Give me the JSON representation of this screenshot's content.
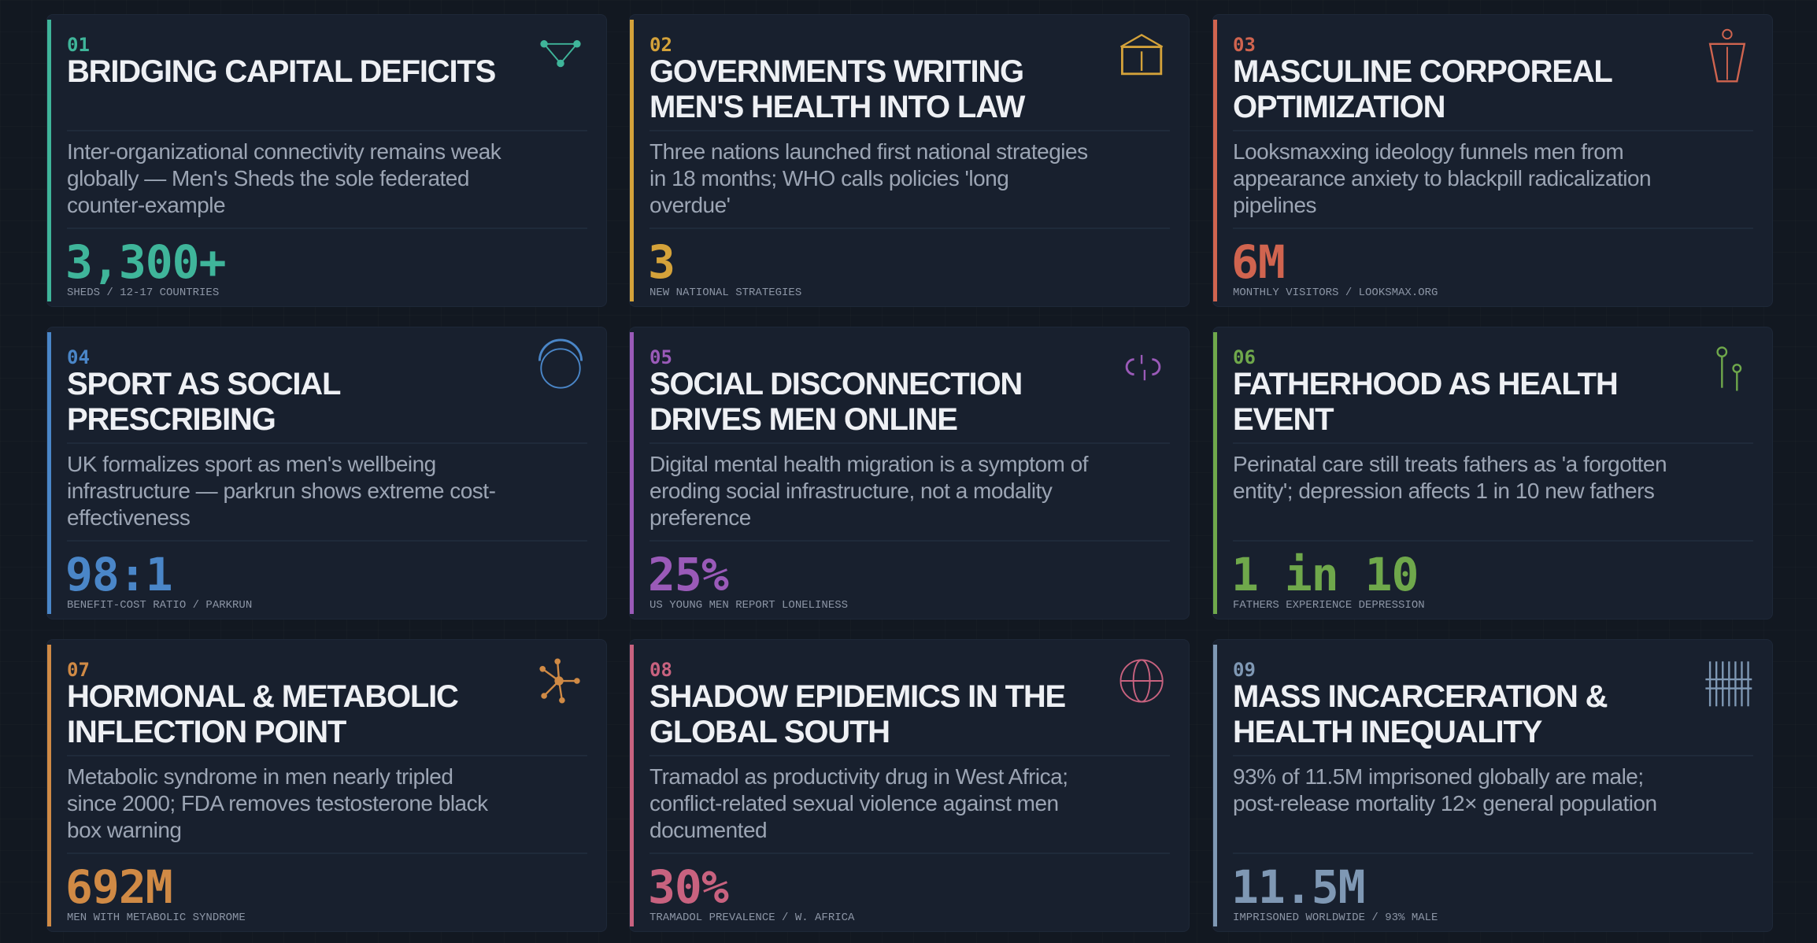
{
  "cards": [
    {
      "number": "01",
      "title": "BRIDGING CAPITAL DEFICITS",
      "description": "Inter-organizational connectivity remains weak globally — Men's Sheds the sole federated counter-example",
      "stat": "3,300+",
      "stat_label": "SHEDS / 12-17 COUNTRIES",
      "accent": "#3fb59a",
      "icon": "network-triangle-icon"
    },
    {
      "number": "02",
      "title": "GOVERNMENTS WRITING MEN'S HEALTH INTO LAW",
      "description": "Three nations launched first national strategies in 18 months; WHO calls policies 'long overdue'",
      "stat": "3",
      "stat_label": "NEW NATIONAL STRATEGIES",
      "accent": "#d4a23a",
      "icon": "building-icon"
    },
    {
      "number": "03",
      "title": "MASCULINE CORPOREAL OPTIMIZATION",
      "description": "Looksmaxxing ideology funnels men from appearance anxiety to blackpill radicalization pipelines",
      "stat": "6M",
      "stat_label": "MONTHLY VISITORS / LOOKSMAX.ORG",
      "accent": "#d0644f",
      "icon": "torso-figure-icon"
    },
    {
      "number": "04",
      "title": "SPORT AS SOCIAL PRESCRIBING",
      "description": "UK formalizes sport as men's wellbeing infrastructure — parkrun shows extreme cost-effectiveness",
      "stat": "98:1",
      "stat_label": "BENEFIT-COST RATIO / PARKRUN",
      "accent": "#4a86c8",
      "icon": "ring-arc-icon"
    },
    {
      "number": "05",
      "title": "SOCIAL DISCONNECTION DRIVES MEN ONLINE",
      "description": "Digital mental health migration is a symptom of eroding social infrastructure, not a modality preference",
      "stat": "25%",
      "stat_label": "US YOUNG MEN REPORT LONELINESS",
      "accent": "#9a5ab8",
      "icon": "broken-link-icon"
    },
    {
      "number": "06",
      "title": "FATHERHOOD AS HEALTH EVENT",
      "description": "Perinatal care still treats fathers as 'a forgotten entity'; depression affects 1 in 10 new fathers",
      "stat": "1 in 10",
      "stat_label": "FATHERS EXPERIENCE DEPRESSION",
      "accent": "#6fa84b",
      "icon": "father-child-pins-icon"
    },
    {
      "number": "07",
      "title": "HORMONAL & METABOLIC INFLECTION POINT",
      "description": "Metabolic syndrome in men nearly tripled since 2000; FDA removes testosterone black box warning",
      "stat": "692M",
      "stat_label": "MEN WITH METABOLIC SYNDROME",
      "accent": "#d08a45",
      "icon": "molecule-icon"
    },
    {
      "number": "08",
      "title": "SHADOW EPIDEMICS IN THE GLOBAL SOUTH",
      "description": "Tramadol as productivity drug in West Africa; conflict-related sexual violence against men documented",
      "stat": "30%",
      "stat_label": "TRAMADOL PREVALENCE / W. AFRICA",
      "accent": "#c8627f",
      "icon": "globe-icon"
    },
    {
      "number": "09",
      "title": "MASS INCARCERATION & HEALTH INEQUALITY",
      "description": "93% of 11.5M imprisoned globally are male; post-release mortality 12× general population",
      "stat": "11.5M",
      "stat_label": "IMPRISONED WORLDWIDE / 93% MALE",
      "accent": "#7f98b4",
      "icon": "prison-bars-icon"
    }
  ]
}
